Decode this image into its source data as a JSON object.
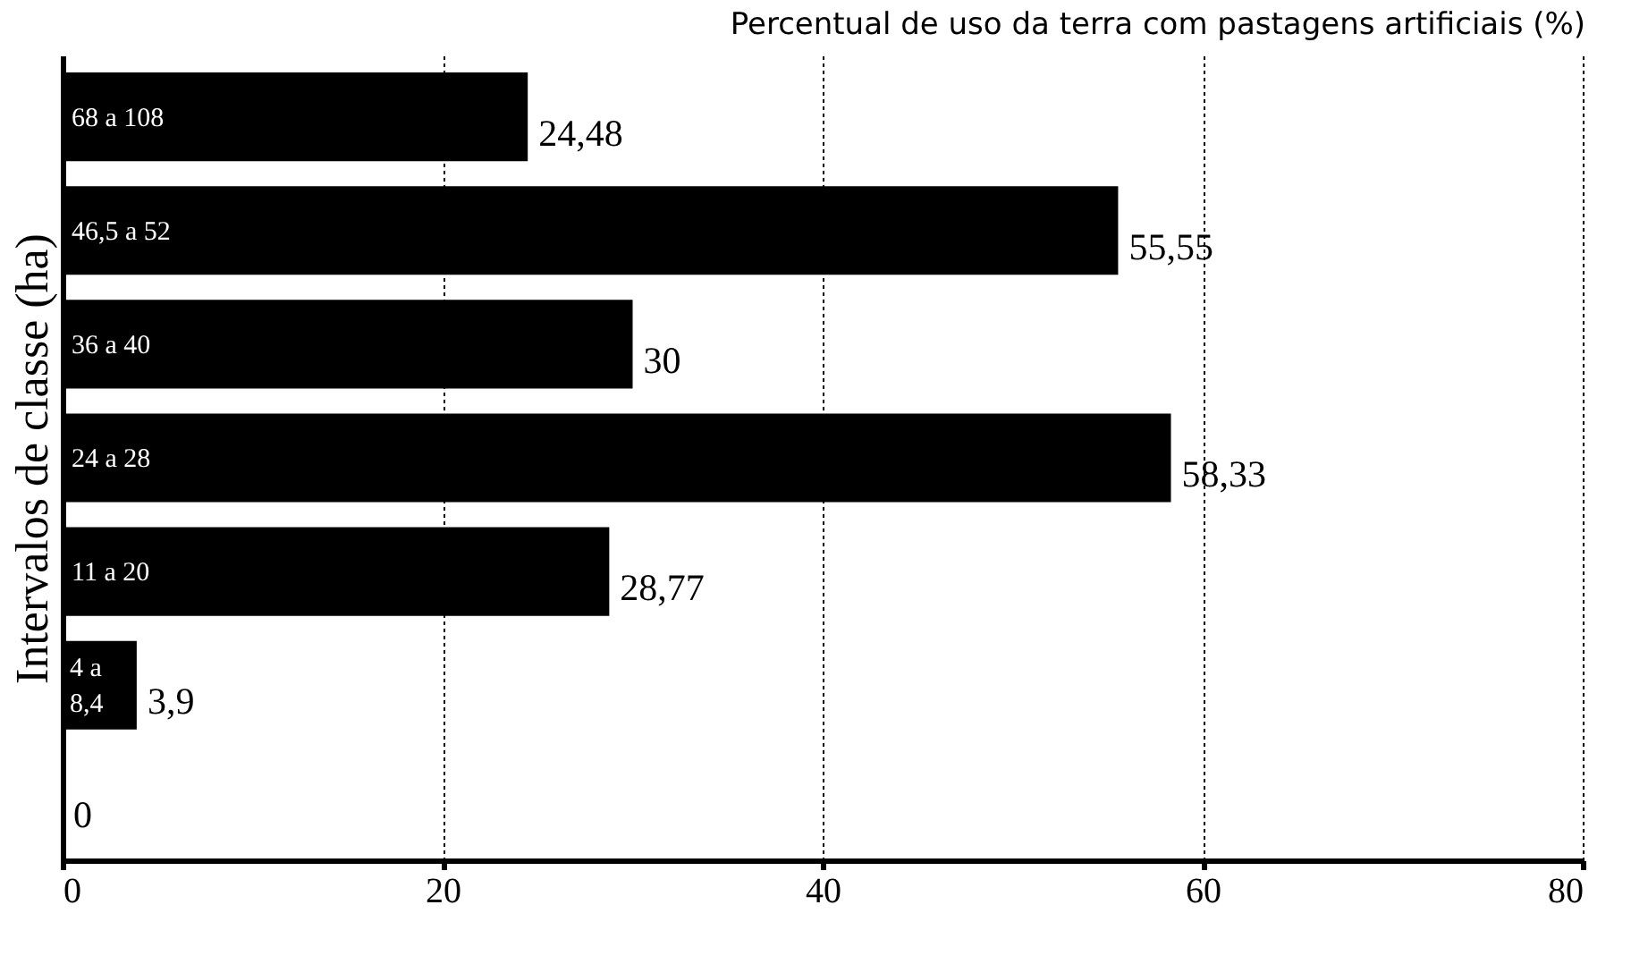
{
  "chart_data": {
    "type": "bar",
    "orientation": "horizontal",
    "xlabel": "Percentual de uso da terra com pastagens artificiais (%)",
    "ylabel": "Intervalos de classe (ha)",
    "categories": [
      "68 a 108",
      "46,5 a 52",
      "36 a 40",
      "24 a 28",
      "11 a 20",
      "4 a 8,4",
      null
    ],
    "values": [
      24.48,
      55.55,
      30,
      58.33,
      28.77,
      3.9,
      0
    ],
    "value_labels": [
      "24,48",
      "55,55",
      "30",
      "58,33",
      "28,77",
      "3,9",
      "0"
    ],
    "color": "#000000",
    "xlim": [
      0,
      80
    ],
    "xticks": [
      0,
      20,
      40,
      60,
      80
    ],
    "grid": "x"
  }
}
